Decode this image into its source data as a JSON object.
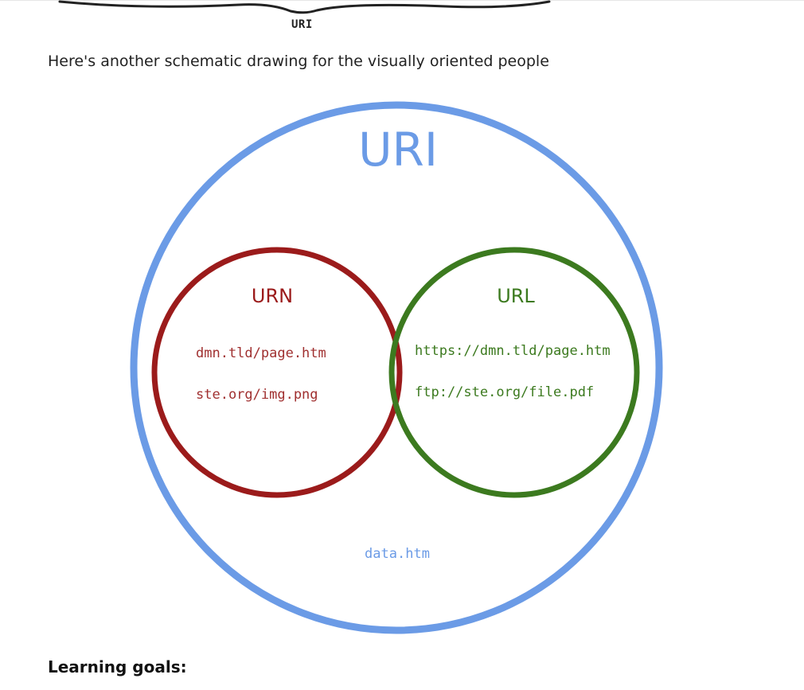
{
  "sketch": {
    "caption": "URI"
  },
  "intro": {
    "text": "Here's another schematic drawing for the visually oriented people"
  },
  "diagram": {
    "uri": {
      "label": "URI",
      "color": "#6b9be6",
      "examples": [
        "data.htm"
      ]
    },
    "urn": {
      "label": "URN",
      "color": "#9b1b1b",
      "examples": [
        "dmn.tld/page.htm",
        "ste.org/img.png"
      ]
    },
    "url": {
      "label": "URL",
      "color": "#3c7a1f",
      "examples": [
        "https://dmn.tld/page.htm",
        "ftp://ste.org/file.pdf"
      ]
    }
  },
  "section": {
    "heading": "Learning goals:"
  }
}
